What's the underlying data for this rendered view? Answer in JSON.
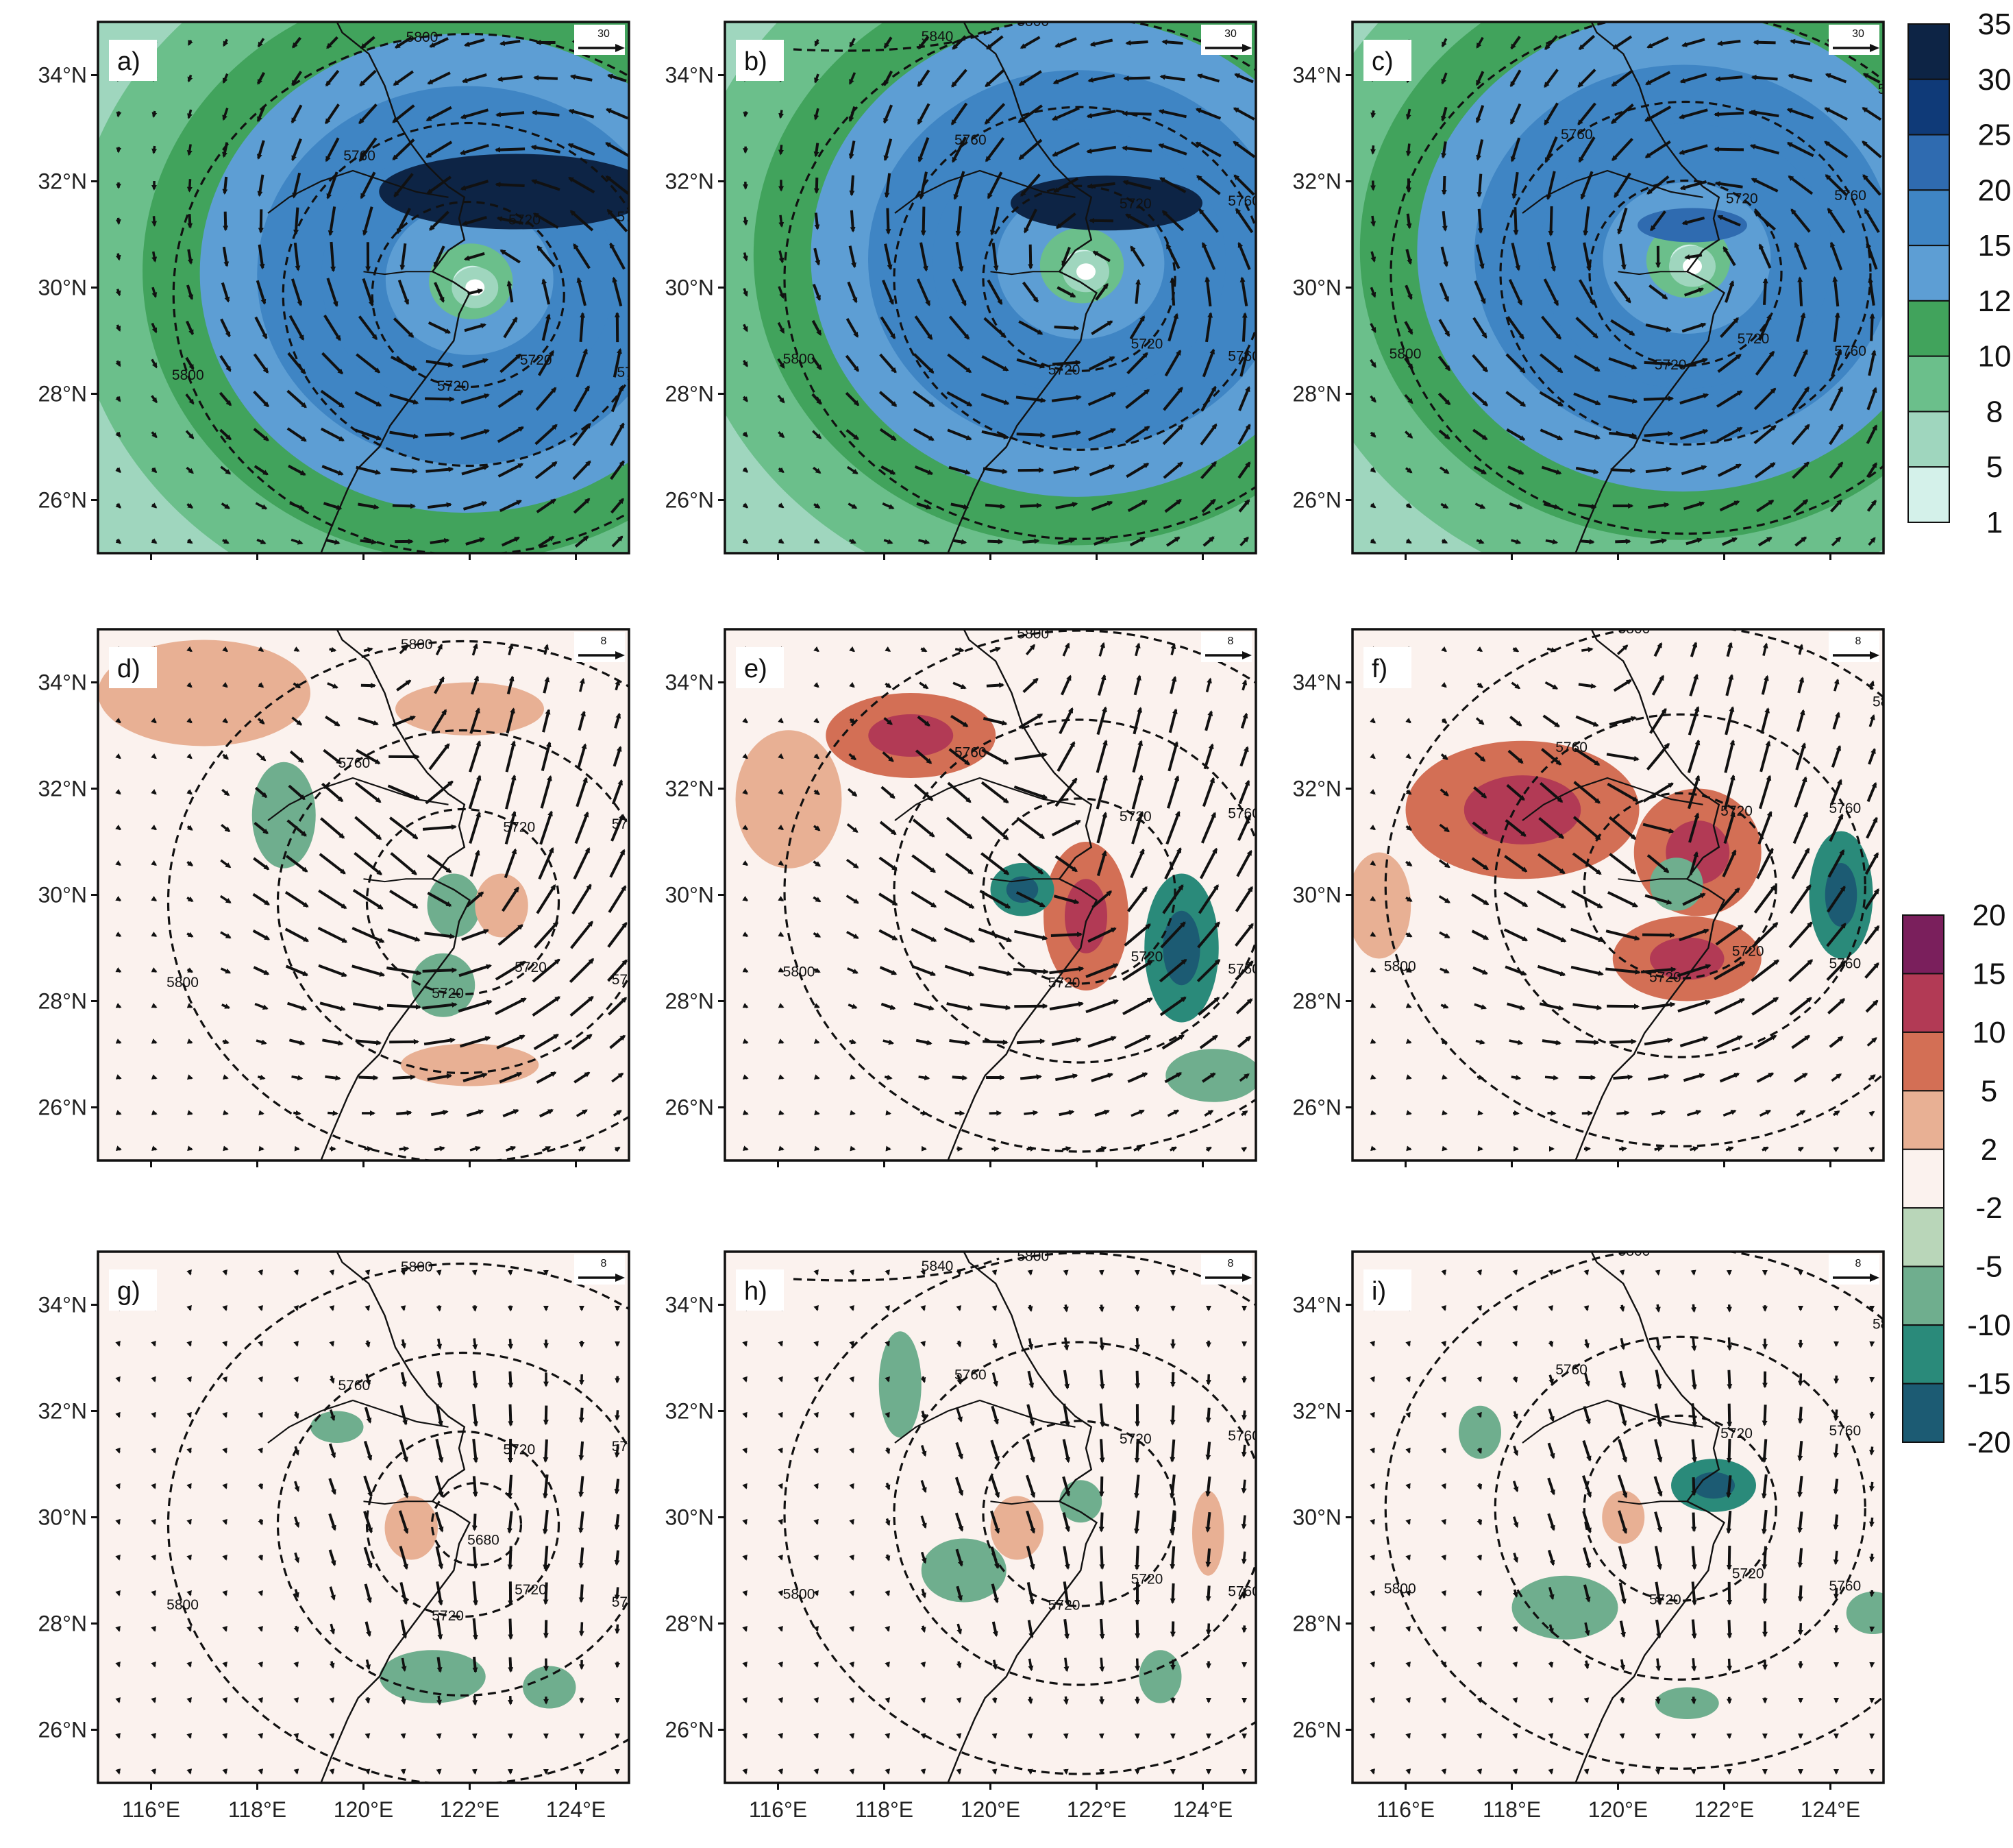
{
  "panels": [
    {
      "label": "a)",
      "row": 0,
      "ref_vector": "30"
    },
    {
      "label": "b)",
      "row": 0,
      "ref_vector": "30"
    },
    {
      "label": "c)",
      "row": 0,
      "ref_vector": "30"
    },
    {
      "label": "d)",
      "row": 1,
      "ref_vector": "8"
    },
    {
      "label": "e)",
      "row": 1,
      "ref_vector": "8"
    },
    {
      "label": "f)",
      "row": 1,
      "ref_vector": "8"
    },
    {
      "label": "g)",
      "row": 2,
      "ref_vector": "8"
    },
    {
      "label": "h)",
      "row": 2,
      "ref_vector": "8"
    },
    {
      "label": "i)",
      "row": 2,
      "ref_vector": "8"
    }
  ],
  "axes": {
    "lat_ticks": [
      "34°N",
      "32°N",
      "30°N",
      "28°N",
      "26°N"
    ],
    "lat_values": [
      34,
      32,
      30,
      28,
      26
    ],
    "lon_ticks": [
      "116°E",
      "118°E",
      "120°E",
      "122°E",
      "124°E"
    ],
    "lon_values": [
      116,
      118,
      120,
      122,
      124
    ],
    "lon_range": [
      115,
      125
    ],
    "lat_range": [
      25,
      35
    ]
  },
  "height_contours": {
    "line_style": "dashed",
    "levels": [
      "5680",
      "5720",
      "5760",
      "5800",
      "5840"
    ]
  },
  "colorbar_top": {
    "labels": [
      "35",
      "30",
      "25",
      "20",
      "15",
      "12",
      "10",
      "8",
      "5",
      "1"
    ],
    "colors": [
      "#0d2445",
      "#0f3a78",
      "#2f6bb0",
      "#3f85c4",
      "#5d9ed4",
      "#41a35c",
      "#6bbf8b",
      "#9fd6be",
      "#d4f1ea"
    ]
  },
  "colorbar_bottom": {
    "labels": [
      "20",
      "15",
      "10",
      "5",
      "2",
      "-2",
      "-5",
      "-10",
      "-15",
      "-20"
    ],
    "colors": [
      "#7a1f5c",
      "#b23a55",
      "#d36f55",
      "#e8b094",
      "#fbf2ee",
      "#b9d6b9",
      "#6fae8e",
      "#2a8a7a",
      "#1c5b73"
    ]
  },
  "fields": {
    "top_row": [
      {
        "center_lon": 122.1,
        "center_lat": 30.0,
        "max_band": 8,
        "eye_band": 2
      },
      {
        "center_lon": 121.8,
        "center_lat": 30.3,
        "max_band": 7,
        "eye_band": 2
      },
      {
        "center_lon": 121.4,
        "center_lat": 30.4,
        "max_band": 5,
        "eye_band": 1
      }
    ],
    "diff_rows": [
      {
        "blobs": [
          [
            117,
            33.8,
            2.0,
            1.0,
            3
          ],
          [
            122,
            33.5,
            1.4,
            0.5,
            3
          ],
          [
            118.5,
            31.5,
            0.6,
            1.0,
            6
          ],
          [
            121.7,
            29.8,
            0.5,
            0.6,
            6
          ],
          [
            122.6,
            29.8,
            0.5,
            0.6,
            3
          ],
          [
            122,
            26.8,
            1.3,
            0.4,
            3
          ],
          [
            121.5,
            28.3,
            0.6,
            0.6,
            6
          ]
        ]
      },
      {
        "blobs": [
          [
            118.5,
            33.0,
            1.6,
            0.8,
            2
          ],
          [
            121.8,
            29.6,
            0.8,
            1.4,
            2
          ],
          [
            120.6,
            30.1,
            0.6,
            0.5,
            7
          ],
          [
            123.6,
            29.0,
            0.7,
            1.4,
            7
          ],
          [
            116.2,
            31.8,
            1.0,
            1.3,
            3
          ],
          [
            124.2,
            26.6,
            0.9,
            0.5,
            6
          ]
        ]
      },
      {
        "blobs": [
          [
            118.2,
            31.6,
            2.2,
            1.3,
            2
          ],
          [
            121.5,
            30.8,
            1.2,
            1.2,
            2
          ],
          [
            121.3,
            28.8,
            1.4,
            0.8,
            2
          ],
          [
            121.1,
            30.2,
            0.5,
            0.5,
            6
          ],
          [
            124.2,
            30.0,
            0.6,
            1.2,
            7
          ],
          [
            115.5,
            29.8,
            0.6,
            1.0,
            3
          ]
        ]
      },
      {
        "blobs": [
          [
            120.9,
            29.8,
            0.5,
            0.6,
            3
          ],
          [
            121.3,
            27.0,
            1.0,
            0.5,
            6
          ],
          [
            119.5,
            31.7,
            0.5,
            0.3,
            6
          ],
          [
            123.5,
            26.8,
            0.5,
            0.4,
            6
          ]
        ]
      },
      {
        "blobs": [
          [
            118.3,
            32.5,
            0.4,
            1.0,
            6
          ],
          [
            119.5,
            29.0,
            0.8,
            0.6,
            6
          ],
          [
            120.5,
            29.8,
            0.5,
            0.6,
            3
          ],
          [
            124.1,
            29.7,
            0.3,
            0.8,
            3
          ],
          [
            123.2,
            27.0,
            0.4,
            0.5,
            6
          ],
          [
            121.7,
            30.3,
            0.4,
            0.4,
            6
          ]
        ]
      },
      {
        "blobs": [
          [
            121.8,
            30.6,
            0.8,
            0.5,
            7
          ],
          [
            120.1,
            30.0,
            0.4,
            0.5,
            3
          ],
          [
            119.0,
            28.3,
            1.0,
            0.6,
            6
          ],
          [
            117.4,
            31.6,
            0.4,
            0.5,
            6
          ],
          [
            121.3,
            26.5,
            0.6,
            0.3,
            6
          ],
          [
            124.8,
            28.2,
            0.5,
            0.4,
            6
          ]
        ]
      }
    ]
  }
}
